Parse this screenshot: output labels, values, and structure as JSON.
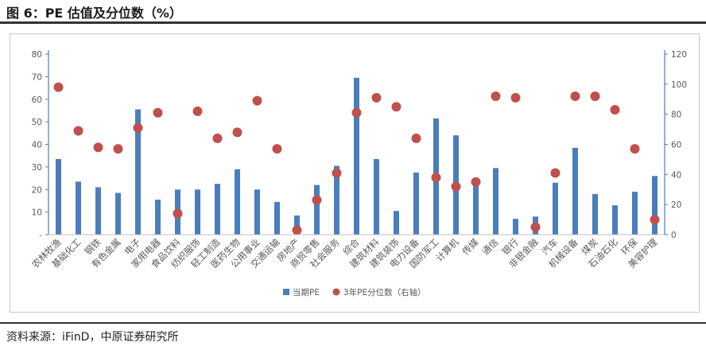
{
  "figure_title": "图 6：PE 估值及分位数（%）",
  "source_text": "资料来源：iFinD，中原证券研究所",
  "colors": {
    "bar": "#4a7ebb",
    "dot": "#c0504d",
    "axis": "#4a7ebb",
    "text": "#595959"
  },
  "chart_data": {
    "type": "bar",
    "title": "",
    "categories": [
      "农林牧渔",
      "基础化工",
      "钢铁",
      "有色金属",
      "电子",
      "家用电器",
      "食品饮料",
      "纺织服饰",
      "轻工制造",
      "医药生物",
      "公用事业",
      "交通运输",
      "房地产",
      "商贸零售",
      "社会服务",
      "综合",
      "建筑材料",
      "建筑装饰",
      "电力设备",
      "国防军工",
      "计算机",
      "传媒",
      "通信",
      "银行",
      "非银金融",
      "汽车",
      "机械设备",
      "煤炭",
      "石油石化",
      "环保",
      "美容护理"
    ],
    "y_left": {
      "ticks": [
        "-",
        "10",
        "20",
        "30",
        "40",
        "50",
        "60",
        "70",
        "80"
      ],
      "min": 0,
      "max": 80
    },
    "y_right": {
      "ticks": [
        "0",
        "20",
        "40",
        "60",
        "80",
        "100",
        "120"
      ],
      "min": 0,
      "max": 120
    },
    "series": [
      {
        "name": "当期PE",
        "type": "bar",
        "axis": "left",
        "values": [
          33.5,
          23.5,
          21,
          18.5,
          55.5,
          15.5,
          20,
          20,
          22.5,
          29,
          20,
          14.5,
          8.5,
          22,
          30.5,
          69.5,
          33.5,
          10.5,
          27.5,
          51.5,
          44,
          24,
          29.5,
          7,
          8,
          23,
          38.5,
          18,
          13,
          19,
          26
        ]
      },
      {
        "name": "3年PE分位数（右轴）",
        "type": "scatter",
        "axis": "right",
        "values": [
          98,
          69,
          58,
          57,
          71,
          81,
          14,
          82,
          64,
          68,
          89,
          57,
          3,
          23,
          41,
          81,
          91,
          85,
          64,
          38,
          32,
          35,
          92,
          91,
          5,
          41,
          92,
          92,
          83,
          57,
          10
        ]
      }
    ],
    "legend": {
      "position": "bottom"
    },
    "grid": false
  }
}
